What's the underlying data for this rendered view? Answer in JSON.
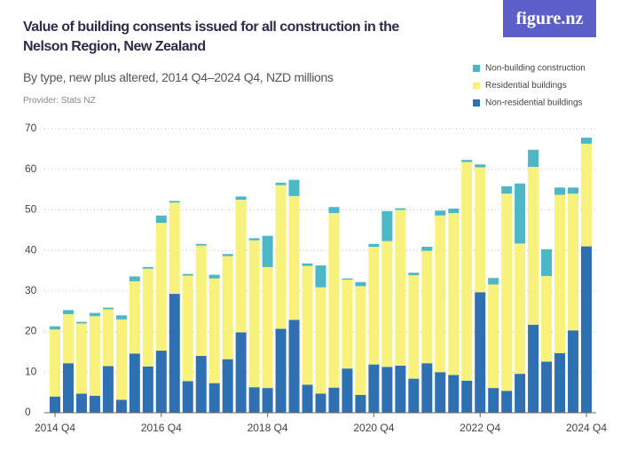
{
  "logo": "figure.nz",
  "chart_data": {
    "type": "stacked_bar",
    "title": "Value of building consents issued for all construction in the Nelson Region, New Zealand",
    "subtitle": "By type, new plus altered, 2014 Q4–2024 Q4, NZD millions",
    "provider": "Provider: Stats NZ",
    "categories": [
      "2014 Q4",
      null,
      null,
      null,
      null,
      null,
      null,
      null,
      "2016 Q4",
      null,
      null,
      null,
      null,
      null,
      null,
      null,
      "2018 Q4",
      null,
      null,
      null,
      null,
      null,
      null,
      null,
      "2020 Q4",
      null,
      null,
      null,
      null,
      null,
      null,
      null,
      "2022 Q4",
      null,
      null,
      null,
      null,
      null,
      null,
      null,
      "2024 Q4"
    ],
    "series": [
      {
        "name": "Non-residential buildings",
        "color": "#2f70b3",
        "values": [
          4,
          12.2,
          4.7,
          4.2,
          11.5,
          3.2,
          14.6,
          11.4,
          15.3,
          29.3,
          7.8,
          14,
          7.3,
          13.2,
          19.8,
          6.3,
          6.1,
          20.7,
          22.9,
          6.9,
          4.7,
          6.2,
          10.9,
          4.4,
          11.9,
          11.3,
          11.6,
          8.4,
          12.2,
          10,
          9.3,
          7.9,
          29.7,
          6.1,
          5.4,
          9.6,
          21.7,
          12.6,
          14.7,
          20.3,
          41
        ]
      },
      {
        "name": "Residential buildings",
        "color": "#f8f27c",
        "values": [
          16.5,
          12.1,
          17.3,
          19.6,
          14,
          19.8,
          17.8,
          24.1,
          31.5,
          22.5,
          26,
          27.2,
          25.8,
          25.4,
          32.7,
          36.2,
          29.8,
          35.4,
          30.5,
          29.3,
          26.2,
          43,
          21.9,
          26.8,
          29,
          31,
          38.4,
          25.5,
          27.7,
          38.6,
          39.9,
          53.9,
          30.8,
          25.5,
          48.6,
          32.1,
          38.9,
          21.1,
          39,
          33.7,
          25.3
        ]
      },
      {
        "name": "Non-building construction",
        "color": "#4cb8c6",
        "values": [
          0.8,
          1,
          0.4,
          0.8,
          0.4,
          1,
          1.2,
          0.4,
          1.8,
          0.4,
          0.4,
          0.4,
          0.9,
          0.5,
          0.8,
          0.5,
          7.7,
          0.6,
          4,
          0.6,
          5.4,
          1.5,
          0.3,
          1,
          0.7,
          7.4,
          0.4,
          0.6,
          1,
          1.2,
          1.1,
          0.5,
          0.7,
          1.6,
          1.8,
          14.8,
          4.2,
          6.6,
          1.8,
          1.5,
          1.5
        ]
      }
    ],
    "ylim": [
      0,
      70
    ],
    "yticks": [
      0,
      10,
      20,
      30,
      40,
      50,
      60,
      70
    ],
    "grid": true,
    "legend": "top-right"
  }
}
